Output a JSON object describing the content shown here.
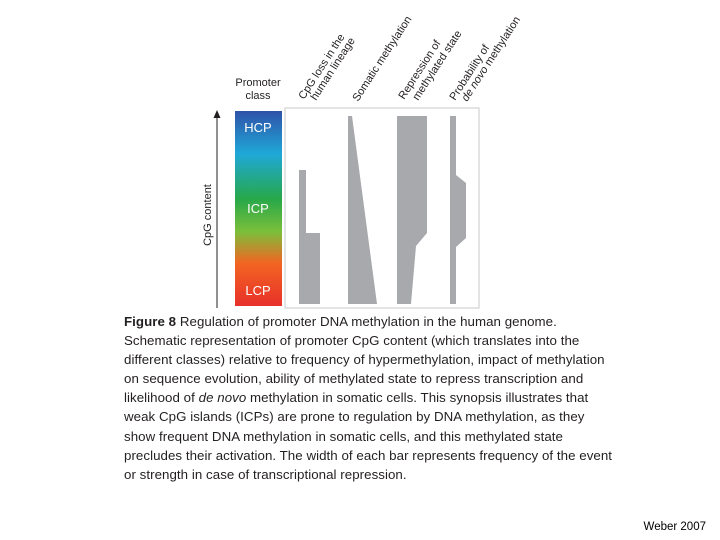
{
  "figure": {
    "promoter_class_label_line1": "Promoter",
    "promoter_class_label_line2": "class",
    "y_axis_label": "CpG content",
    "classes": {
      "hcp": "HCP",
      "icp": "ICP",
      "lcp": "LCP"
    },
    "column_headers": [
      {
        "line1": "CpG loss in the",
        "line2": "human lineage"
      },
      {
        "line1": "Somatic methylation",
        "line2": ""
      },
      {
        "line1": "Repression of",
        "line2": "methylated state"
      },
      {
        "line1": "Probability of",
        "line2": "de novo methylation"
      }
    ],
    "gradient_colors": [
      "#2f52a8",
      "#1fa8d8",
      "#27a84a",
      "#7cbf3a",
      "#f26522",
      "#e8302a"
    ],
    "bar_color": "#a7a9ac"
  },
  "caption": {
    "label": "Figure 8",
    "title": "Regulation of promoter DNA methylation in the human genome.",
    "body_pre": "Schematic representation of promoter CpG content (which translates into the different classes) relative to frequency of hypermethylation, impact of methylation on sequence evolution, ability of methylated state to repress transcription and likelihood of ",
    "body_italic": "de novo",
    "body_post": " methylation in somatic cells. This synopsis illustrates that weak CpG islands (ICPs) are prone to regulation by DNA methylation, as they show frequent DNA methylation in somatic cells, and this methylated state precludes their activation. The width of each bar represents frequency of the event or strength in case of transcriptional repression."
  },
  "credit": "Weber 2007"
}
